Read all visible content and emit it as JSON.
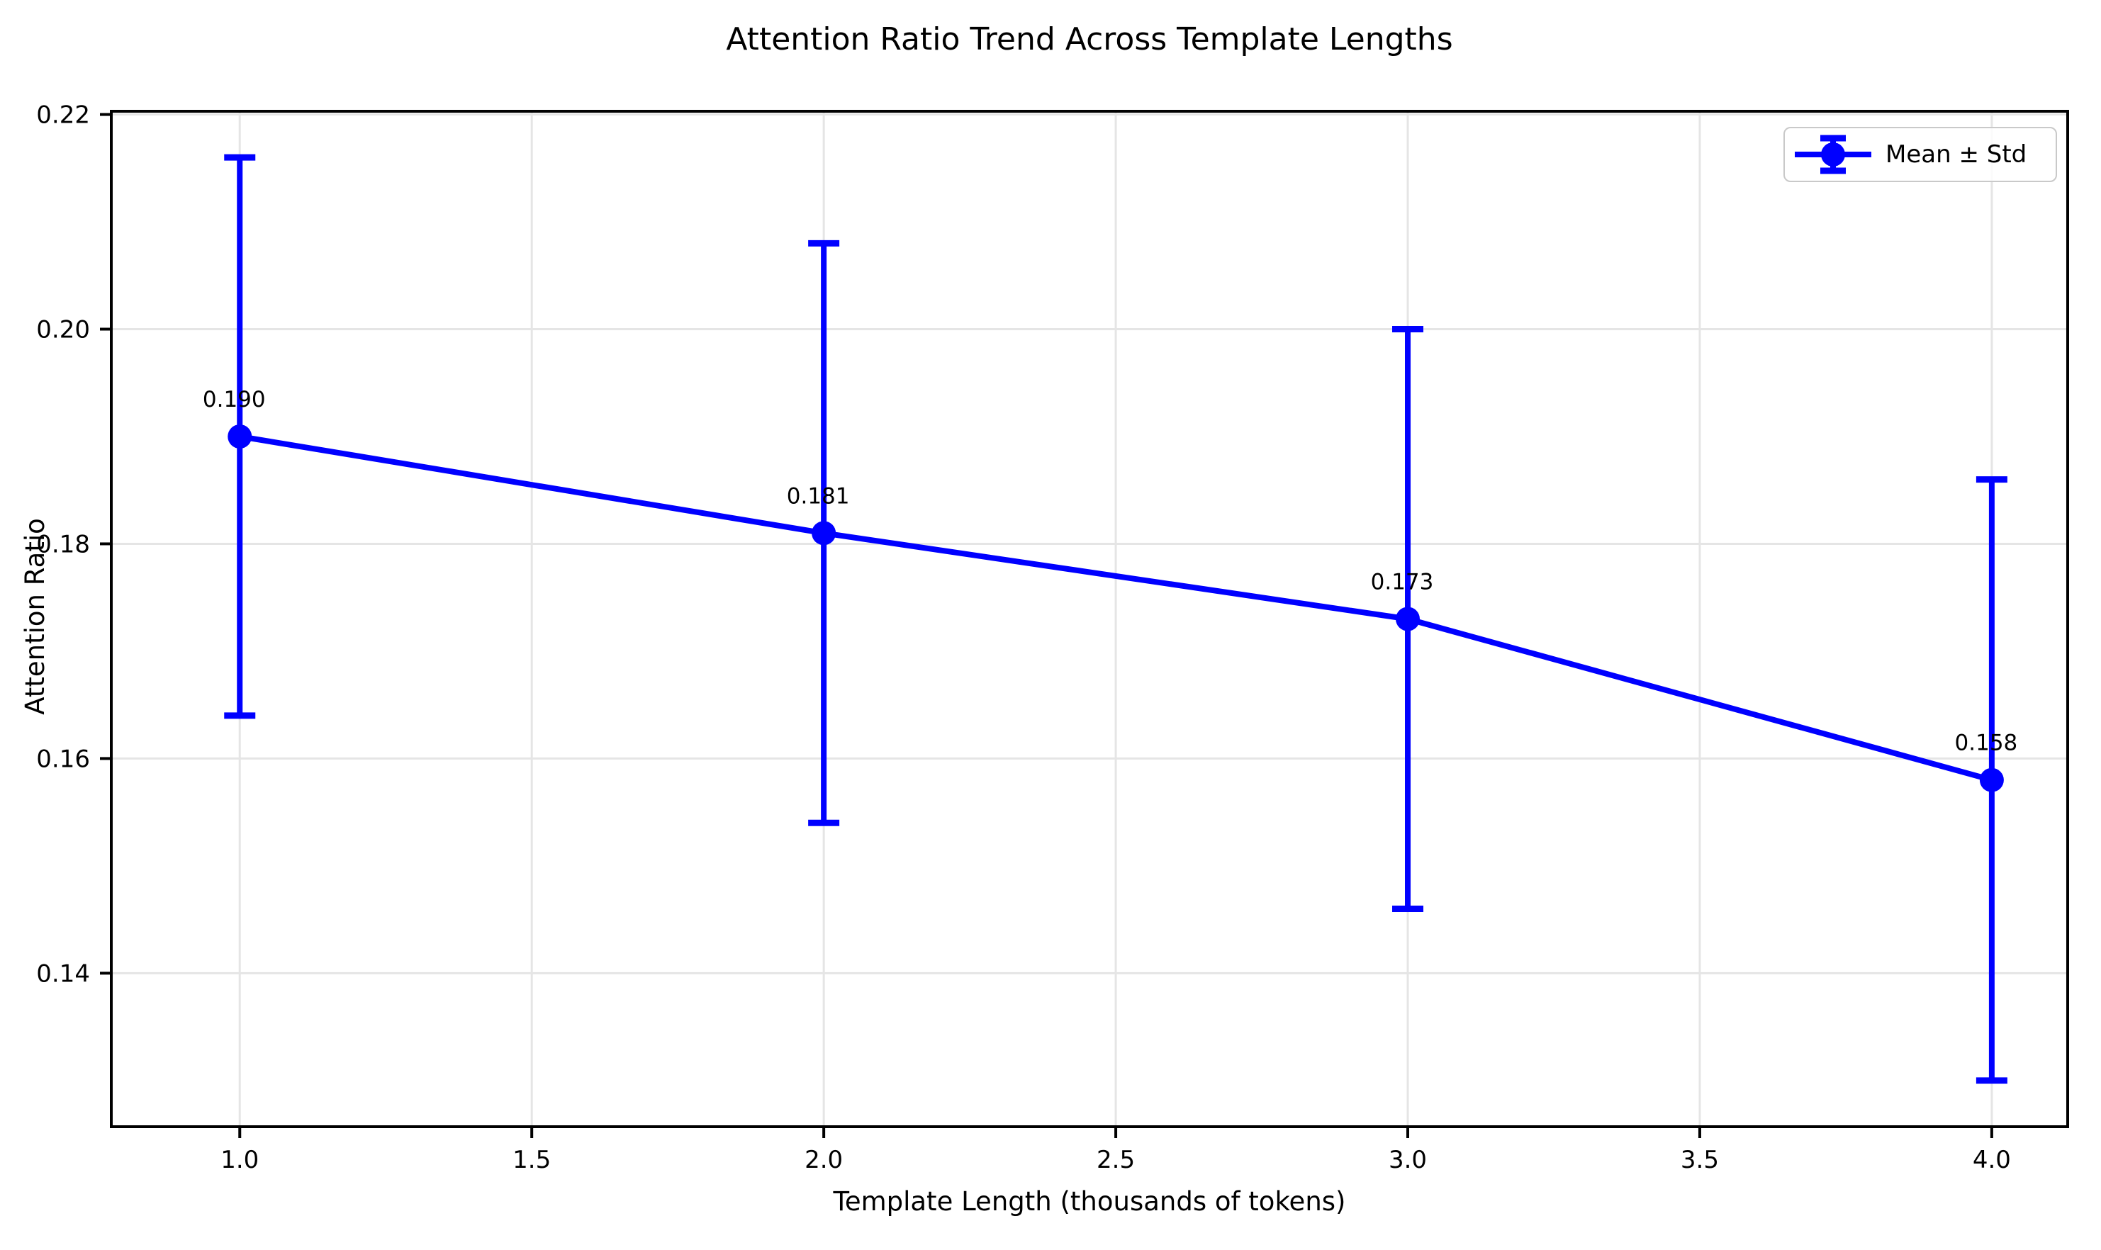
{
  "chart_data": {
    "type": "line",
    "title": "Attention Ratio Trend Across Template Lengths",
    "xlabel": "Template Length (thousands of tokens)",
    "ylabel": "Attention Ratio",
    "legend": {
      "label": "Mean ± Std",
      "position": "upper right"
    },
    "x": [
      1.0,
      2.0,
      3.0,
      4.0
    ],
    "series": [
      {
        "name": "Mean ± Std",
        "values": [
          0.19,
          0.181,
          0.173,
          0.158
        ],
        "std": [
          0.026,
          0.027,
          0.027,
          0.028
        ]
      }
    ],
    "point_labels": [
      "0.190",
      "0.181",
      "0.173",
      "0.158"
    ],
    "x_ticks": [
      1.0,
      1.5,
      2.0,
      2.5,
      3.0,
      3.5,
      4.0
    ],
    "x_tick_labels": [
      "1.0",
      "1.5",
      "2.0",
      "2.5",
      "3.0",
      "3.5",
      "4.0"
    ],
    "y_ticks": [
      0.14,
      0.16,
      0.18,
      0.2,
      0.22
    ],
    "y_tick_labels": [
      "0.14",
      "0.16",
      "0.18",
      "0.20",
      "0.22"
    ],
    "xlim": [
      0.78,
      4.13
    ],
    "ylim": [
      0.1257,
      0.2203
    ],
    "grid": true,
    "colors": {
      "line": "#0000ff",
      "grid": "#e5e5e5",
      "spine": "#000000",
      "text": "#000000",
      "legend_border": "#c9c9c9"
    }
  }
}
